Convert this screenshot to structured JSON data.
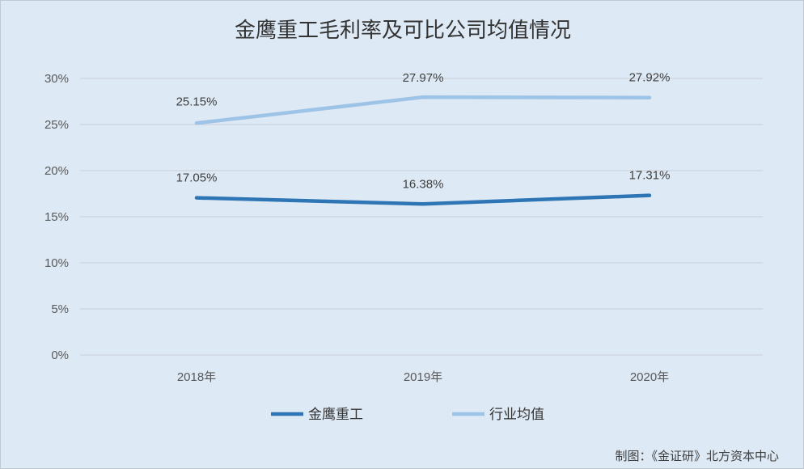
{
  "chart_data": {
    "type": "line",
    "title": "金鹰重工毛利率及可比公司均值情况",
    "categories": [
      "2018年",
      "2019年",
      "2020年"
    ],
    "series": [
      {
        "name": "金鹰重工",
        "values": [
          17.05,
          16.38,
          17.31
        ],
        "labels": [
          "17.05%",
          "16.38%",
          "17.31%"
        ],
        "color": "#2e75b6"
      },
      {
        "name": "行业均值",
        "values": [
          25.15,
          27.97,
          27.92
        ],
        "labels": [
          "25.15%",
          "27.97%",
          "27.92%"
        ],
        "color": "#9dc3e6"
      }
    ],
    "yticks": [
      0,
      5,
      10,
      15,
      20,
      25,
      30
    ],
    "ytick_labels": [
      "0%",
      "5%",
      "10%",
      "15%",
      "20%",
      "25%",
      "30%"
    ],
    "ylim": [
      0,
      30
    ],
    "grid": true,
    "legend_position": "bottom",
    "xlabel": "",
    "ylabel": ""
  },
  "credit": "制图：《金证研》北方资本中心",
  "colors": {
    "background": "#dde9f5",
    "gridline": "#c9ced6",
    "text": "#404040"
  }
}
